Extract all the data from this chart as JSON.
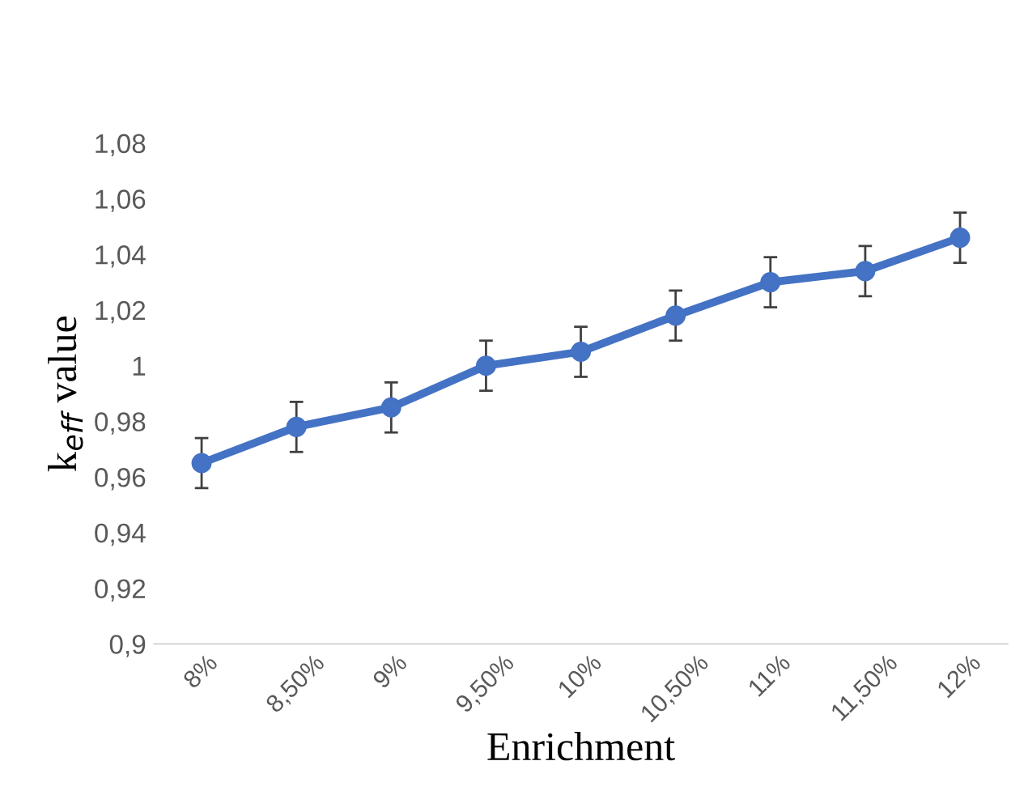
{
  "chart_data": {
    "type": "line",
    "xlabel": "Enrichment",
    "ylabel": "k$_{eff}$ value",
    "categories": [
      "8%",
      "8,50%",
      "9%",
      "9,50%",
      "10%",
      "10,50%",
      "11%",
      "11,50%",
      "12%"
    ],
    "series": [
      {
        "color": "#4472c4",
        "values": [
          0.965,
          0.978,
          0.985,
          1.0,
          1.005,
          1.018,
          1.03,
          1.034,
          1.046
        ],
        "errors": [
          0.009,
          0.009,
          0.009,
          0.009,
          0.009,
          0.009,
          0.009,
          0.009,
          0.009
        ]
      }
    ],
    "ylim": [
      0.9,
      1.08
    ],
    "yticks": [
      {
        "value": 0.9,
        "label": "0,9"
      },
      {
        "value": 0.92,
        "label": "0,92"
      },
      {
        "value": 0.94,
        "label": "0,94"
      },
      {
        "value": 0.96,
        "label": "0,96"
      },
      {
        "value": 0.98,
        "label": "0,98"
      },
      1,
      {
        "value": 1.02,
        "label": "1,02"
      },
      {
        "value": 1.04,
        "label": "1,04"
      },
      {
        "value": 1.06,
        "label": "1,06"
      },
      {
        "value": 1.08,
        "label": "1,08"
      }
    ],
    "marker": "circle",
    "line_style": "solid",
    "grid": false,
    "legend": false
  }
}
